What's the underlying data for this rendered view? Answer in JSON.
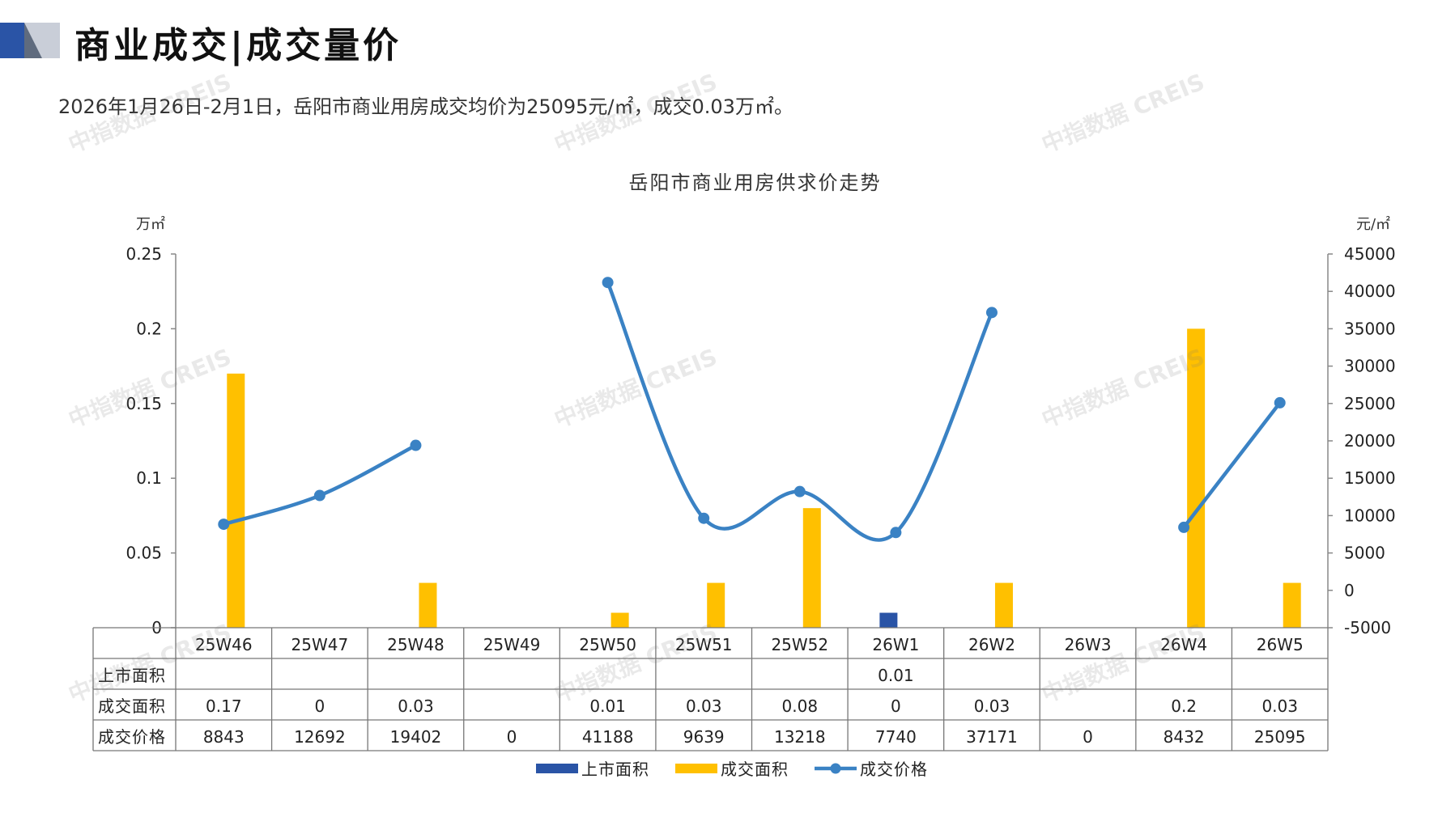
{
  "header": {
    "title": "商业成交|成交量价",
    "summary": "2026年1月26日-2月1日，岳阳市商业用房成交均价为25095元/㎡，成交0.03万㎡。"
  },
  "watermark": "中指数据 CREIS",
  "chart_data": {
    "type": "bar+line",
    "title": "岳阳市商业用房供求价走势",
    "categories": [
      "25W46",
      "25W47",
      "25W48",
      "25W49",
      "25W50",
      "25W51",
      "25W52",
      "26W1",
      "26W2",
      "26W3",
      "26W4",
      "26W5"
    ],
    "y_left": {
      "unit": "万㎡",
      "min": 0,
      "max": 0.25,
      "ticks": [
        "0",
        "0.05",
        "0.1",
        "0.15",
        "0.2",
        "0.25"
      ]
    },
    "y_right": {
      "unit": "元/㎡",
      "min": -5000,
      "max": 45000,
      "ticks": [
        "-5000",
        "0",
        "5000",
        "10000",
        "15000",
        "20000",
        "25000",
        "30000",
        "35000",
        "40000",
        "45000"
      ]
    },
    "series": [
      {
        "name": "上市面积",
        "type": "bar",
        "axis": "left",
        "color": "#2a54a6",
        "values": [
          null,
          null,
          null,
          null,
          null,
          null,
          null,
          0.01,
          null,
          null,
          null,
          null
        ],
        "labels": [
          "",
          "",
          "",
          "",
          "",
          "",
          "",
          "0.01",
          "",
          "",
          "",
          ""
        ]
      },
      {
        "name": "成交面积",
        "type": "bar",
        "axis": "left",
        "color": "#ffc000",
        "values": [
          0.17,
          0,
          0.03,
          null,
          0.01,
          0.03,
          0.08,
          0,
          0.03,
          null,
          0.2,
          0.03
        ],
        "labels": [
          "0.17",
          "0",
          "0.03",
          "",
          "0.01",
          "0.03",
          "0.08",
          "0",
          "0.03",
          "",
          "0.2",
          "0.03"
        ]
      },
      {
        "name": "成交价格",
        "type": "line",
        "axis": "right",
        "color": "#3a82c4",
        "values": [
          8843,
          12692,
          19402,
          0,
          41188,
          9639,
          13218,
          7740,
          37171,
          0,
          8432,
          25095
        ],
        "labels": [
          "8843",
          "12692",
          "19402",
          "0",
          "41188",
          "9639",
          "13218",
          "7740",
          "37171",
          "0",
          "8432",
          "25095"
        ]
      }
    ],
    "legend_position": "bottom"
  }
}
